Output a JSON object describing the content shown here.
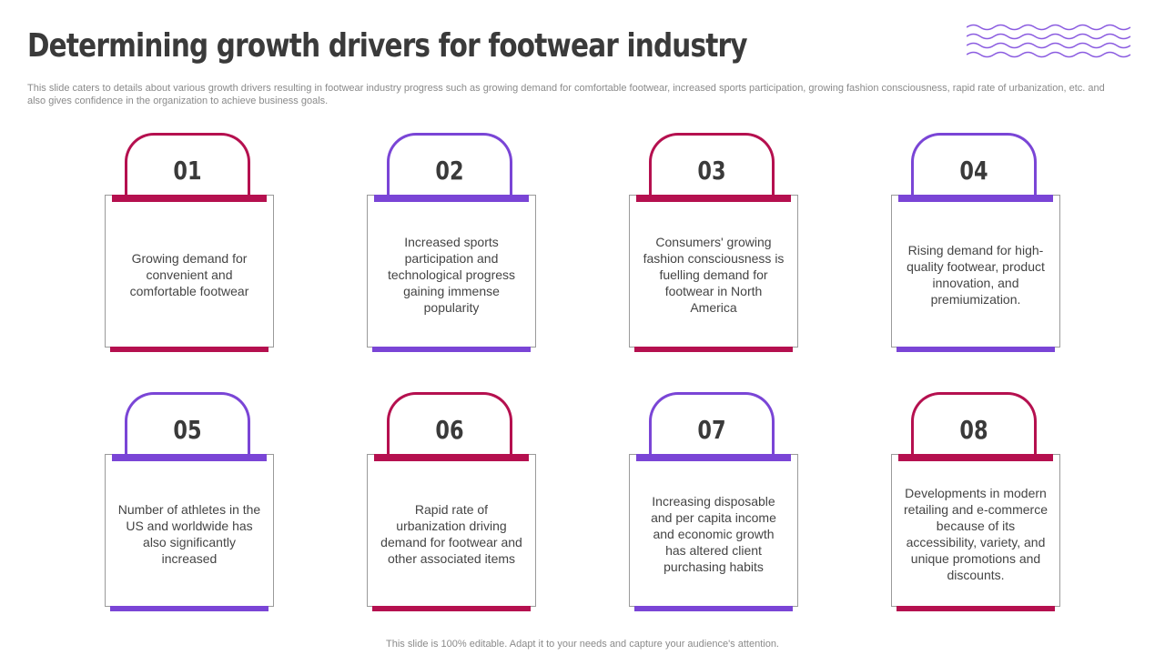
{
  "title": "Determining growth drivers for footwear industry",
  "subtitle": "This slide caters to details about various growth drivers resulting in footwear industry progress such as growing demand for comfortable footwear, increased sports participation, growing fashion consciousness, rapid rate of urbanization, etc. and also gives confidence in the organization to achieve business goals.",
  "footer": "This slide is 100% editable. Adapt it to your needs and capture your audience's attention.",
  "colors": {
    "crimson": "#b5104f",
    "purple": "#7a45d6",
    "text": "#3a3a3a"
  },
  "cards": [
    {
      "number": "01",
      "text": "Growing demand for convenient and comfortable footwear",
      "color": "crimson"
    },
    {
      "number": "02",
      "text": "Increased sports participation and technological progress gaining immense popularity",
      "color": "purple"
    },
    {
      "number": "03",
      "text": "Consumers' growing fashion consciousness is fuelling demand for footwear in North America",
      "color": "crimson"
    },
    {
      "number": "04",
      "text": "Rising demand for high-quality footwear, product innovation, and premiumization.",
      "color": "purple"
    },
    {
      "number": "05",
      "text": "Number of athletes in the US and worldwide has also significantly increased",
      "color": "purple"
    },
    {
      "number": "06",
      "text": "Rapid rate of urbanization driving demand for footwear and other associated items",
      "color": "crimson"
    },
    {
      "number": "07",
      "text": "Increasing disposable and per capita income and economic growth has altered client purchasing habits",
      "color": "purple"
    },
    {
      "number": "08",
      "text": "Developments in modern retailing and e-commerce because of its accessibility, variety, and unique promotions and discounts.",
      "color": "crimson"
    }
  ]
}
